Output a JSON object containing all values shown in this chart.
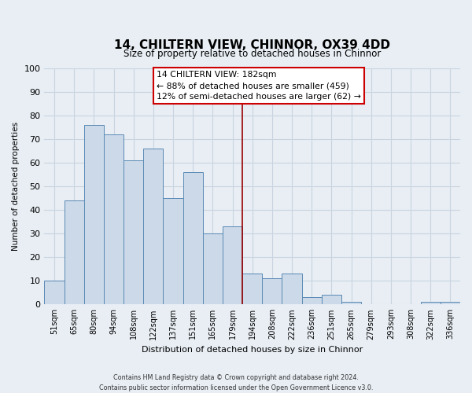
{
  "title": "14, CHILTERN VIEW, CHINNOR, OX39 4DD",
  "subtitle": "Size of property relative to detached houses in Chinnor",
  "xlabel": "Distribution of detached houses by size in Chinnor",
  "ylabel": "Number of detached properties",
  "footer_line1": "Contains HM Land Registry data © Crown copyright and database right 2024.",
  "footer_line2": "Contains public sector information licensed under the Open Government Licence v3.0.",
  "categories": [
    "51sqm",
    "65sqm",
    "80sqm",
    "94sqm",
    "108sqm",
    "122sqm",
    "137sqm",
    "151sqm",
    "165sqm",
    "179sqm",
    "194sqm",
    "208sqm",
    "222sqm",
    "236sqm",
    "251sqm",
    "265sqm",
    "279sqm",
    "293sqm",
    "308sqm",
    "322sqm",
    "336sqm"
  ],
  "values": [
    10,
    44,
    76,
    72,
    61,
    66,
    45,
    56,
    30,
    33,
    13,
    11,
    13,
    3,
    4,
    1,
    0,
    0,
    0,
    1,
    1
  ],
  "bar_color": "#ccd9e8",
  "bar_edge_color": "#5a8ab5",
  "vline_x_index": 9.5,
  "vline_color": "#990000",
  "annotation_text": "14 CHILTERN VIEW: 182sqm\n← 88% of detached houses are smaller (459)\n12% of semi-detached houses are larger (62) →",
  "annotation_box_color": "white",
  "annotation_box_edge": "#cc0000",
  "ylim": [
    0,
    100
  ],
  "grid_color": "#c8d4e0",
  "background_color": "#e8eef4",
  "title_fontsize": 11,
  "subtitle_fontsize": 9
}
